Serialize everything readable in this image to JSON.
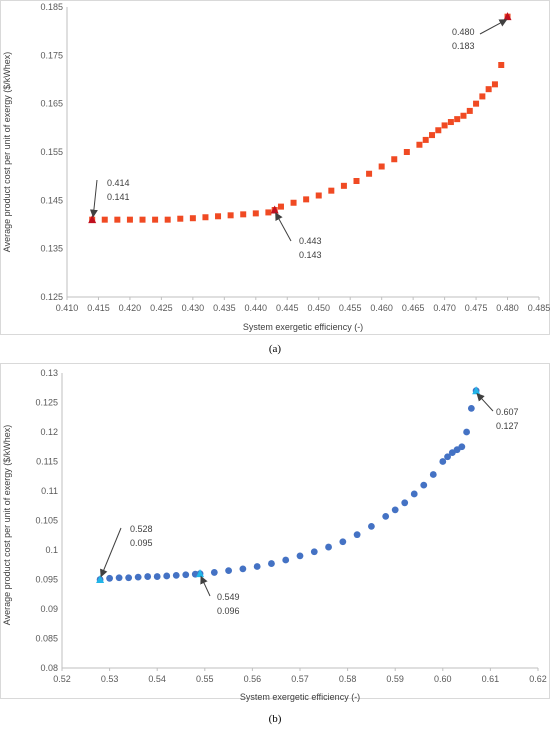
{
  "chart_data": [
    {
      "type": "scatter",
      "panel_label": "(a)",
      "xlabel": "System exergetic efficiency (-)",
      "ylabel": "Average product cost per unit of exergy ($/kWhex)",
      "xlim": [
        0.41,
        0.485
      ],
      "ylim": [
        0.125,
        0.185
      ],
      "xticks": [
        "0.410",
        "0.415",
        "0.420",
        "0.425",
        "0.430",
        "0.435",
        "0.440",
        "0.445",
        "0.450",
        "0.455",
        "0.460",
        "0.465",
        "0.470",
        "0.475",
        "0.480",
        "0.485"
      ],
      "yticks": [
        "0.125",
        "0.135",
        "0.145",
        "0.155",
        "0.165",
        "0.175",
        "0.185"
      ],
      "grid": false,
      "marker": "square",
      "color": "#f04a23",
      "highlight_color": "#c0101f",
      "series": [
        {
          "x": [
            0.414,
            0.416,
            0.418,
            0.42,
            0.422,
            0.424,
            0.426,
            0.428,
            0.43,
            0.432,
            0.434,
            0.436,
            0.438,
            0.44,
            0.442,
            0.443,
            0.444,
            0.446,
            0.448,
            0.45,
            0.452,
            0.454,
            0.456,
            0.458,
            0.46,
            0.462,
            0.464,
            0.466,
            0.467,
            0.468,
            0.469,
            0.47,
            0.471,
            0.472,
            0.473,
            0.474,
            0.475,
            0.476,
            0.477,
            0.478,
            0.479,
            0.48
          ],
          "y": [
            0.141,
            0.141,
            0.141,
            0.141,
            0.141,
            0.141,
            0.141,
            0.1412,
            0.1413,
            0.1415,
            0.1417,
            0.1419,
            0.1421,
            0.1423,
            0.1425,
            0.143,
            0.1437,
            0.1445,
            0.1452,
            0.146,
            0.147,
            0.148,
            0.149,
            0.1505,
            0.152,
            0.1535,
            0.155,
            0.1565,
            0.1575,
            0.1585,
            0.1595,
            0.1605,
            0.1612,
            0.1618,
            0.1625,
            0.1635,
            0.165,
            0.1665,
            0.168,
            0.169,
            0.173,
            0.183
          ]
        }
      ],
      "annotations": [
        {
          "label": [
            "0.414",
            "0.141"
          ],
          "x": 0.414,
          "y": 0.141
        },
        {
          "label": [
            "0.443",
            "0.143"
          ],
          "x": 0.443,
          "y": 0.143
        },
        {
          "label": [
            "0.480",
            "0.183"
          ],
          "x": 0.48,
          "y": 0.183
        }
      ]
    },
    {
      "type": "scatter",
      "panel_label": "(b)",
      "xlabel": "System exergetic efficiency (-)",
      "ylabel": "Average product cost per unit of exergy ($/kWhex)",
      "xlim": [
        0.52,
        0.62
      ],
      "ylim": [
        0.08,
        0.13
      ],
      "xticks": [
        "0.52",
        "0.53",
        "0.54",
        "0.55",
        "0.56",
        "0.57",
        "0.58",
        "0.59",
        "0.60",
        "0.61",
        "0.62"
      ],
      "yticks": [
        "0.08",
        "0.085",
        "0.09",
        "0.095",
        "0.1",
        "0.105",
        "0.11",
        "0.115",
        "0.12",
        "0.125",
        "0.13"
      ],
      "grid": false,
      "marker": "circle",
      "color": "#4472c4",
      "highlight_color": "#22b5e8",
      "series": [
        {
          "x": [
            0.528,
            0.53,
            0.532,
            0.534,
            0.536,
            0.538,
            0.54,
            0.542,
            0.544,
            0.546,
            0.548,
            0.549,
            0.552,
            0.555,
            0.558,
            0.561,
            0.564,
            0.567,
            0.57,
            0.573,
            0.576,
            0.579,
            0.582,
            0.585,
            0.588,
            0.59,
            0.592,
            0.594,
            0.596,
            0.598,
            0.6,
            0.601,
            0.602,
            0.603,
            0.604,
            0.605,
            0.606,
            0.607
          ],
          "y": [
            0.095,
            0.0952,
            0.0953,
            0.0953,
            0.0954,
            0.0955,
            0.0955,
            0.0956,
            0.0957,
            0.0958,
            0.0959,
            0.096,
            0.0962,
            0.0965,
            0.0968,
            0.0972,
            0.0977,
            0.0983,
            0.099,
            0.0997,
            0.1005,
            0.1014,
            0.1026,
            0.104,
            0.1057,
            0.1068,
            0.108,
            0.1095,
            0.111,
            0.1128,
            0.115,
            0.1158,
            0.1165,
            0.117,
            0.1175,
            0.12,
            0.124,
            0.127
          ]
        }
      ],
      "annotations": [
        {
          "label": [
            "0.528",
            "0.095"
          ],
          "x": 0.528,
          "y": 0.095
        },
        {
          "label": [
            "0.549",
            "0.096"
          ],
          "x": 0.549,
          "y": 0.096
        },
        {
          "label": [
            "0.607",
            "0.127"
          ],
          "x": 0.607,
          "y": 0.127
        }
      ]
    }
  ]
}
